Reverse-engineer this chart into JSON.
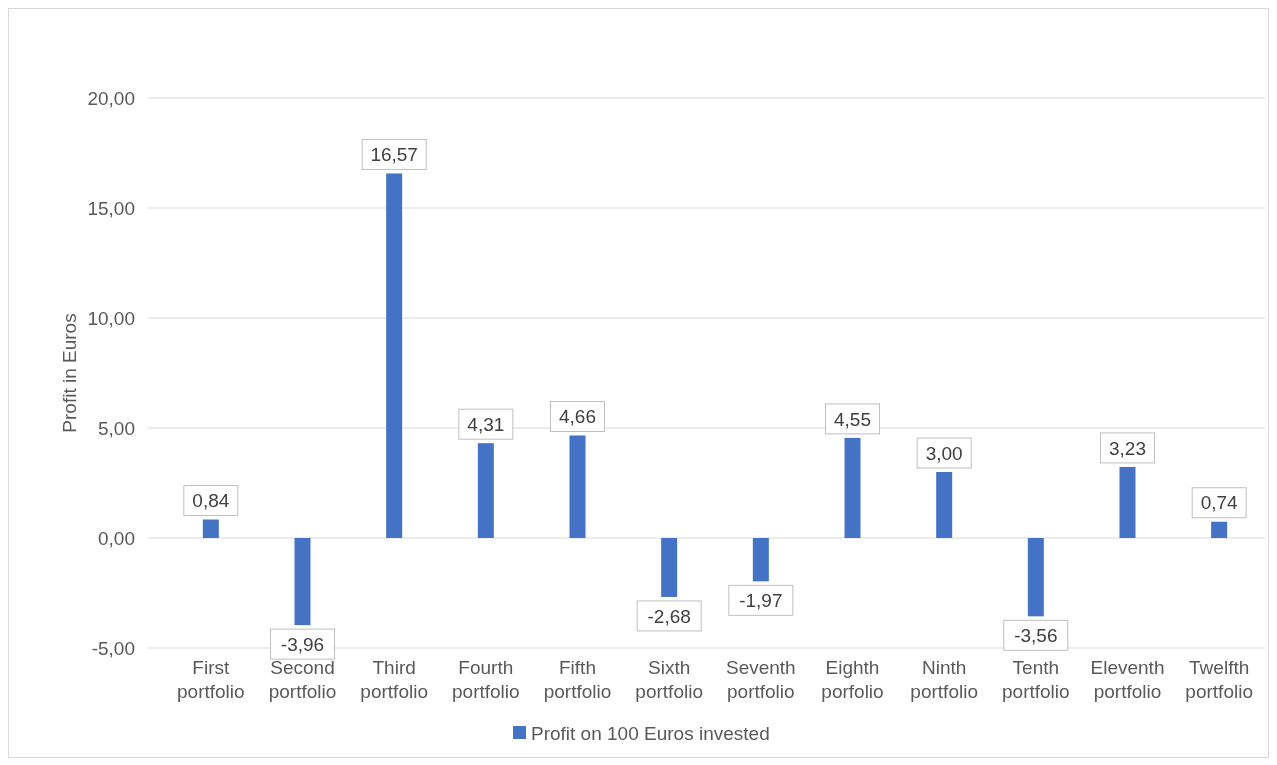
{
  "chart_data": {
    "type": "bar",
    "ylabel": "Profit in Euros",
    "categories": [
      "First portfolio",
      "Second portfolio",
      "Third portfolio",
      "Fourth portfolio",
      "Fifth portfolio",
      "Sixth portfolio",
      "Seventh portfolio",
      "Eighth porfolio",
      "Ninth portfolio",
      "Tenth portfolio",
      "Eleventh portfolio",
      "Twelfth portfolio"
    ],
    "series": [
      {
        "name": "Profit on 100 Euros invested",
        "color": "#4472c4",
        "values": [
          0.84,
          -3.96,
          16.57,
          4.31,
          4.66,
          -2.68,
          -1.97,
          4.55,
          3.0,
          -3.56,
          3.23,
          0.74
        ],
        "value_labels": [
          "0,84",
          "-3,96",
          "16,57",
          "4,31",
          "4,66",
          "-2,68",
          "-1,97",
          "4,55",
          "3,00",
          "-3,56",
          "3,23",
          "0,74"
        ]
      }
    ],
    "ylim": [
      -5,
      20
    ],
    "yticks": [
      {
        "value": -5,
        "label": "-5,00"
      },
      {
        "value": 0,
        "label": "0,00"
      },
      {
        "value": 5,
        "label": "5,00"
      },
      {
        "value": 10,
        "label": "10,00"
      },
      {
        "value": 15,
        "label": "15,00"
      },
      {
        "value": 20,
        "label": "20,00"
      }
    ],
    "grid": "y",
    "legend": "bottom"
  }
}
